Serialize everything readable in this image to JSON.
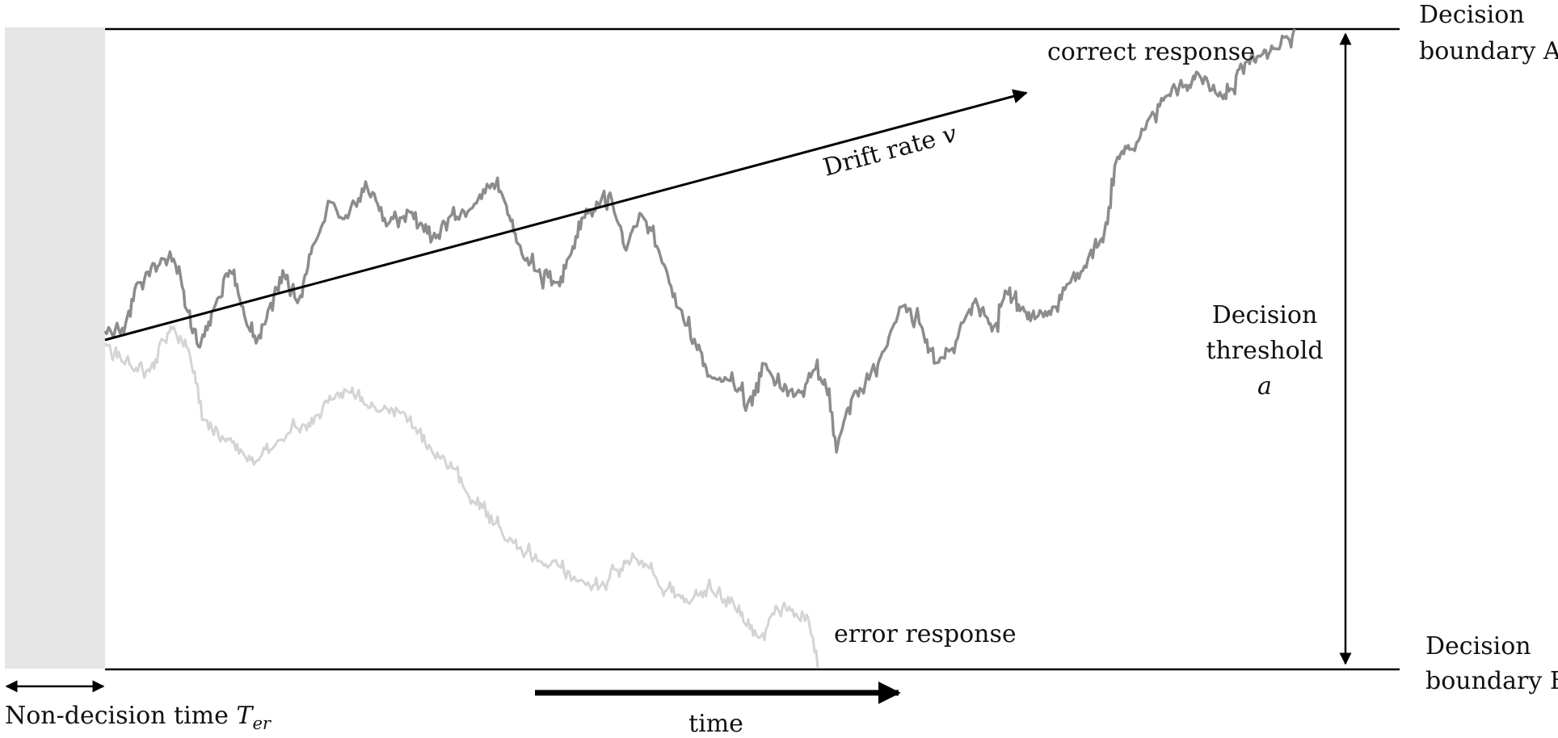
{
  "labels": {
    "boundary_a_line1": "Decision",
    "boundary_a_line2": "boundary A",
    "boundary_b_line1": "Decision",
    "boundary_b_line2": "boundary B",
    "threshold_line1": "Decision",
    "threshold_line2": "threshold",
    "threshold_symbol": "a",
    "correct_response": "correct response",
    "error_response": "error response",
    "drift_rate_text": "Drift rate ",
    "drift_rate_symbol": "v",
    "non_decision_text": "Non-decision time ",
    "non_decision_symbol": "T",
    "non_decision_subscript": "er",
    "time": "time"
  },
  "colors": {
    "boundary": "#000000",
    "non_decision_region": "#e6e6e6",
    "correct_path": "#8c8c8c",
    "error_path": "#d4d4d4",
    "arrows": "#000000"
  }
}
